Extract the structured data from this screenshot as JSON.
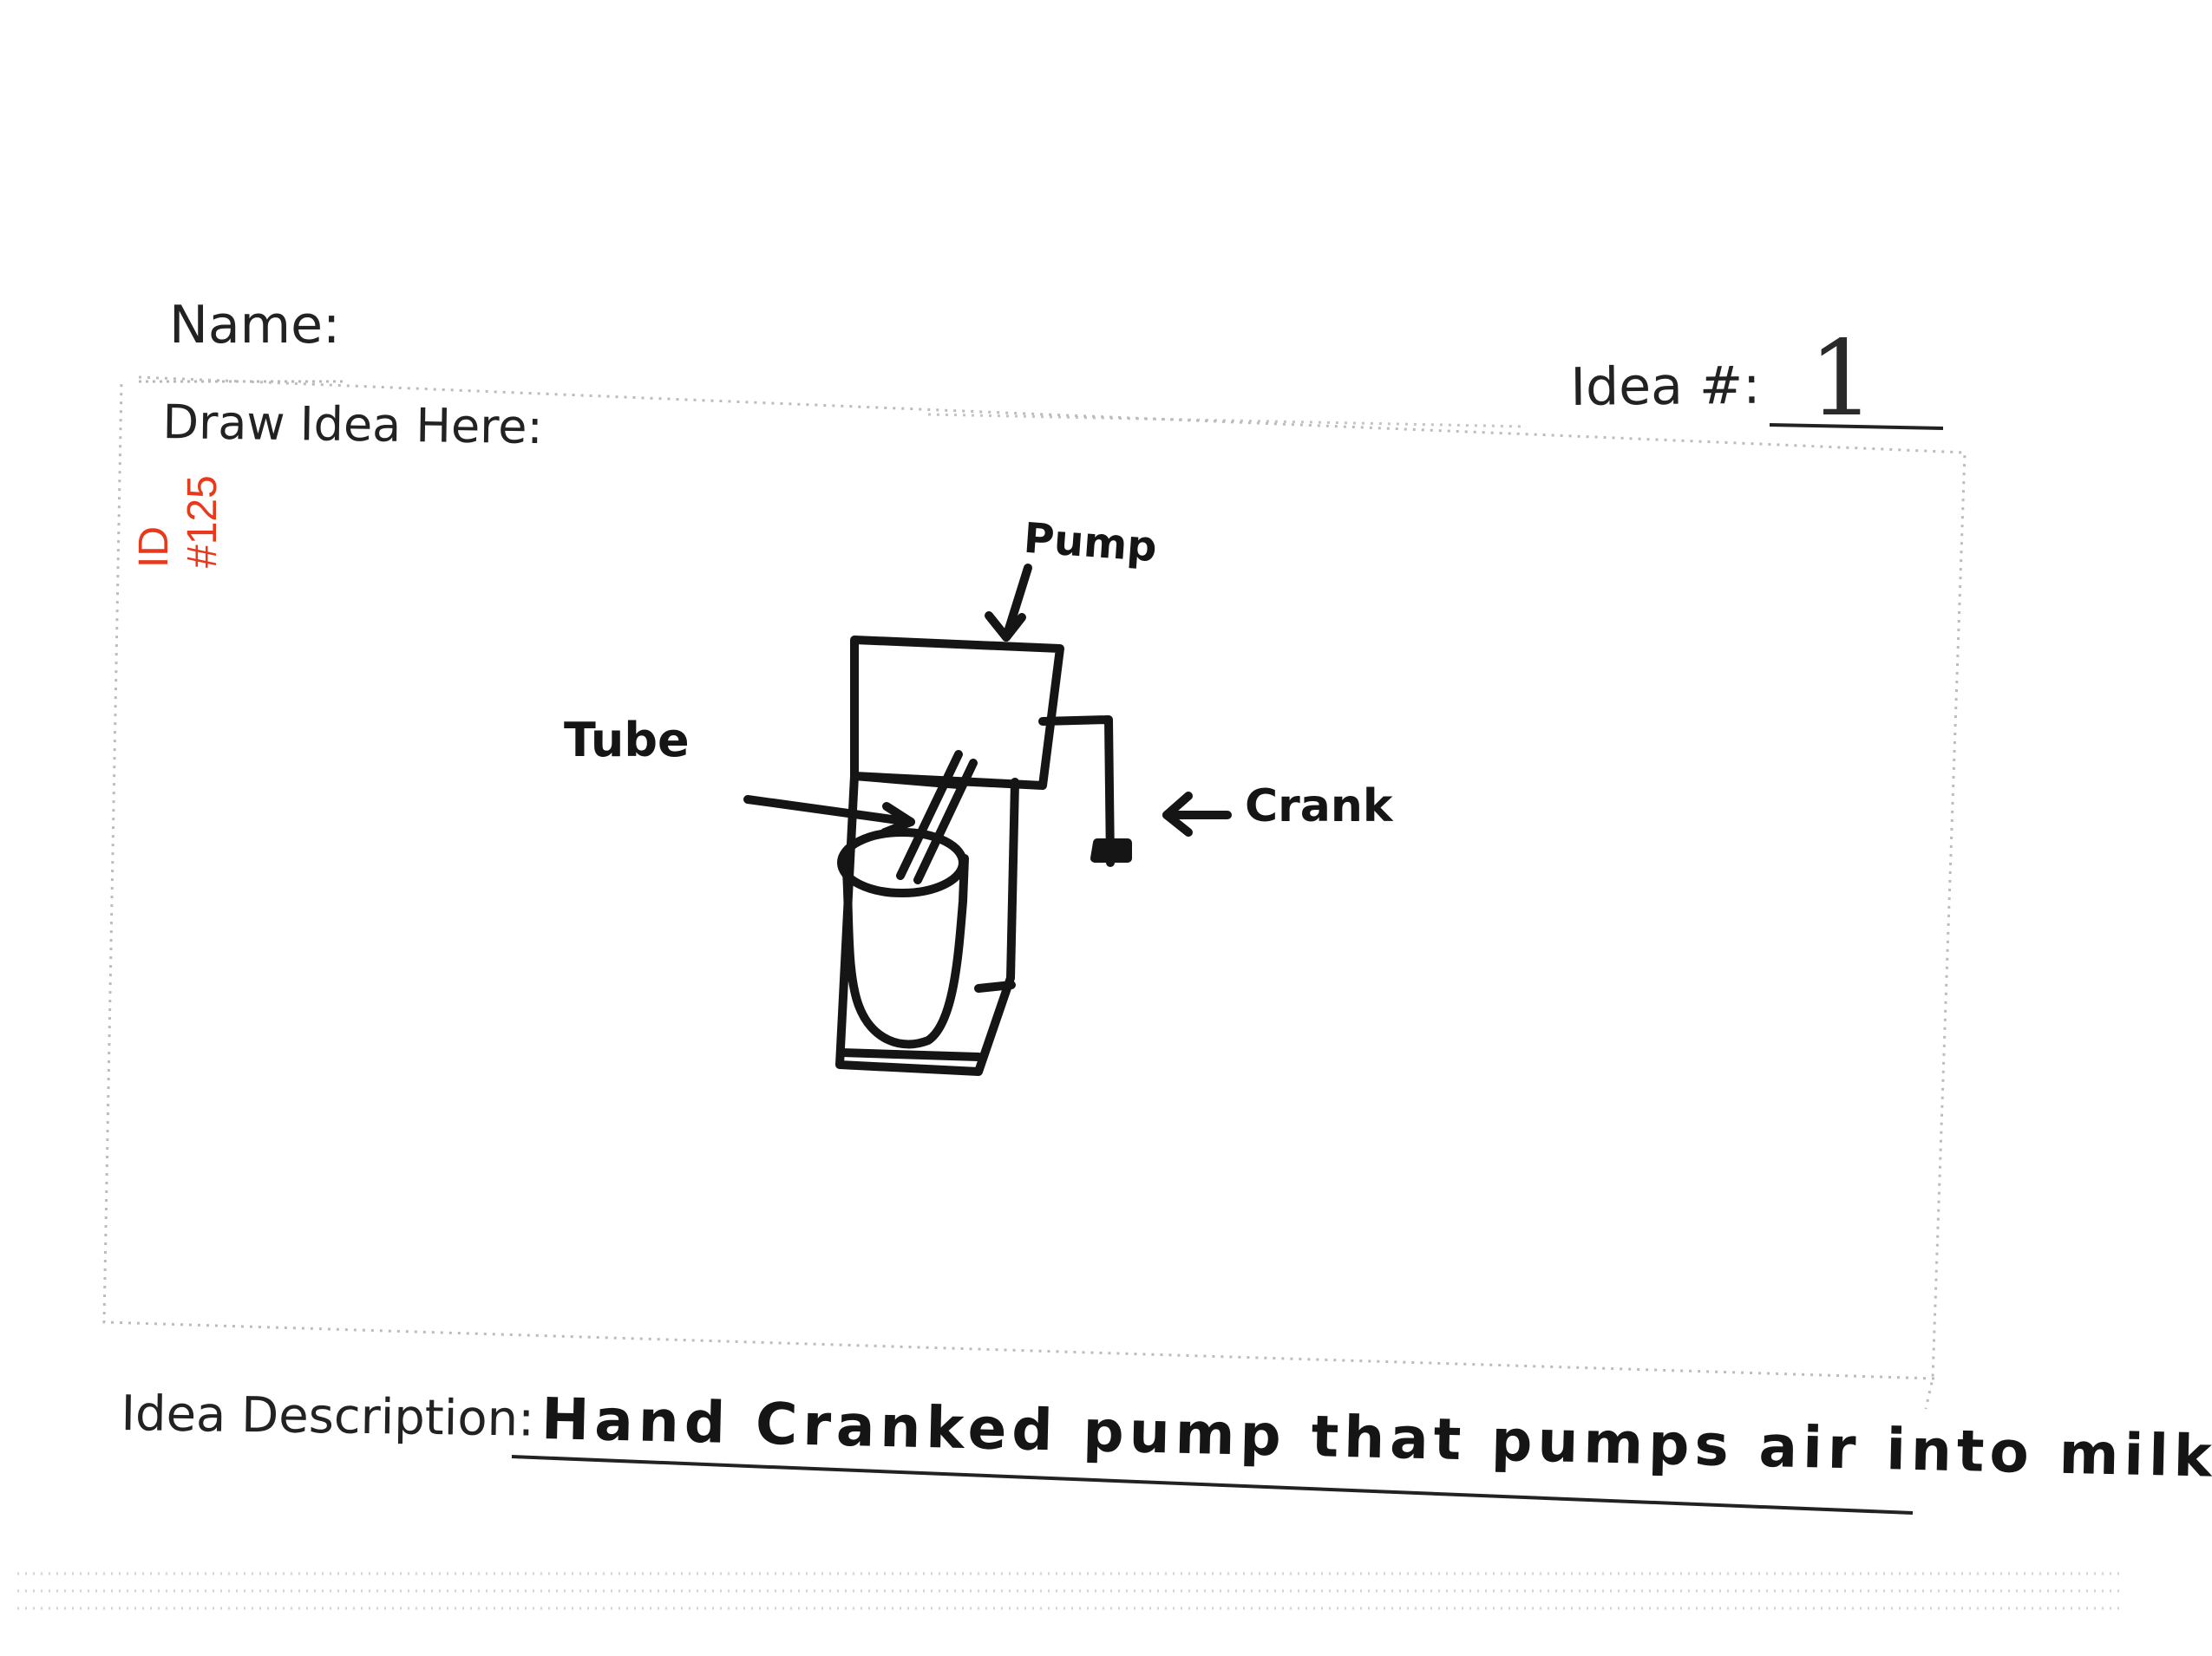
{
  "form": {
    "name_label": "Name:",
    "draw_label": "Draw Idea Here:",
    "idea_number_label": "Idea #:",
    "idea_number_value": "1",
    "description_label": "Idea Description:",
    "description_value": "Hand Cranked pump that pumps air into milk."
  },
  "stamp": {
    "line1": "ID",
    "line2": "#125",
    "color": "#e8391d"
  },
  "sketch": {
    "labels": {
      "pump": "Pump",
      "tube": "Tube",
      "crank": "Crank"
    }
  }
}
